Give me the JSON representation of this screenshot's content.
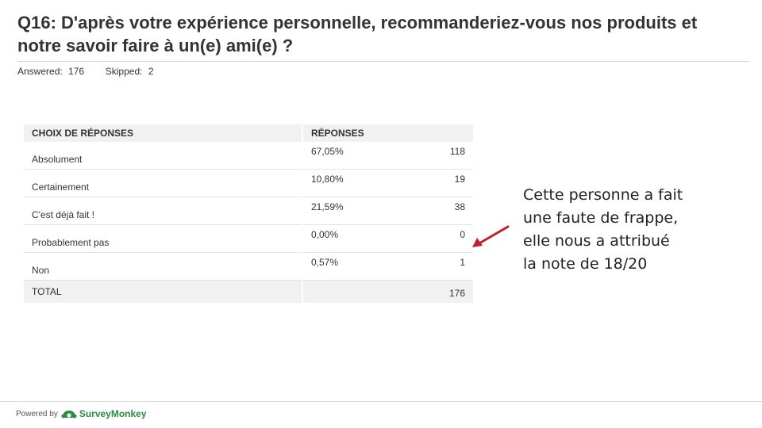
{
  "question": {
    "title": "Q16: D'après votre expérience personnelle, recommanderiez-vous nos produits et notre savoir faire à un(e) ami(e) ?",
    "answered_label": "Answered:",
    "answered_value": "176",
    "skipped_label": "Skipped:",
    "skipped_value": "2"
  },
  "table": {
    "headers": [
      "CHOIX DE RÉPONSES",
      "RÉPONSES"
    ],
    "rows": [
      {
        "label": "Absolument",
        "pct": "67,05%",
        "count": "118"
      },
      {
        "label": "Certainement",
        "pct": "10,80%",
        "count": "19"
      },
      {
        "label": "C'est déjà fait !",
        "pct": "21,59%",
        "count": "38"
      },
      {
        "label": "Probablement pas",
        "pct": "0,00%",
        "count": "0"
      },
      {
        "label": "Non",
        "pct": "0,57%",
        "count": "1"
      }
    ],
    "total_label": "TOTAL",
    "total_value": "176"
  },
  "annotation": {
    "line1": "Cette personne a fait",
    "line2": "une faute de frappe,",
    "line3": "elle nous a attribué",
    "line4": "la note de 18/20",
    "arrow_color": "#c0202a"
  },
  "footer": {
    "powered_by": "Powered by",
    "brand": "SurveyMonkey",
    "brand_color": "#2d8a43"
  }
}
